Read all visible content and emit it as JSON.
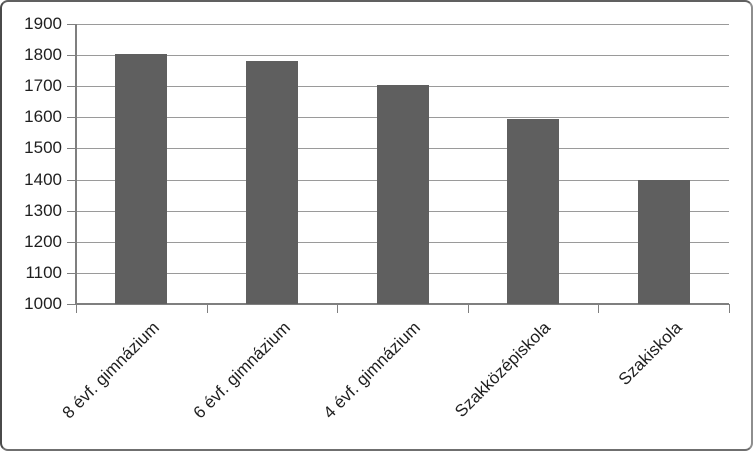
{
  "chart_data": {
    "type": "bar",
    "title": "",
    "xlabel": "",
    "ylabel": "",
    "categories": [
      "8 évf. gimnázium",
      "6 évf. gimnázium",
      "4 évf. gimnázium",
      "Szakközépiskola",
      "Szakiskola"
    ],
    "values": [
      1805,
      1780,
      1705,
      1595,
      1400
    ],
    "ylim": [
      1000,
      1900
    ],
    "ytick_step": 100,
    "ytick_labels": [
      "1000",
      "1100",
      "1200",
      "1300",
      "1400",
      "1500",
      "1600",
      "1700",
      "1800",
      "1900"
    ],
    "grid": true,
    "legend": false,
    "colors": {
      "bar": "#5f5f5f",
      "gridline": "#9a9a9a",
      "axis": "#7f7f7f",
      "text": "#1f1f1f",
      "background": "#ffffff",
      "frame_border": "#6f6f6f"
    }
  }
}
